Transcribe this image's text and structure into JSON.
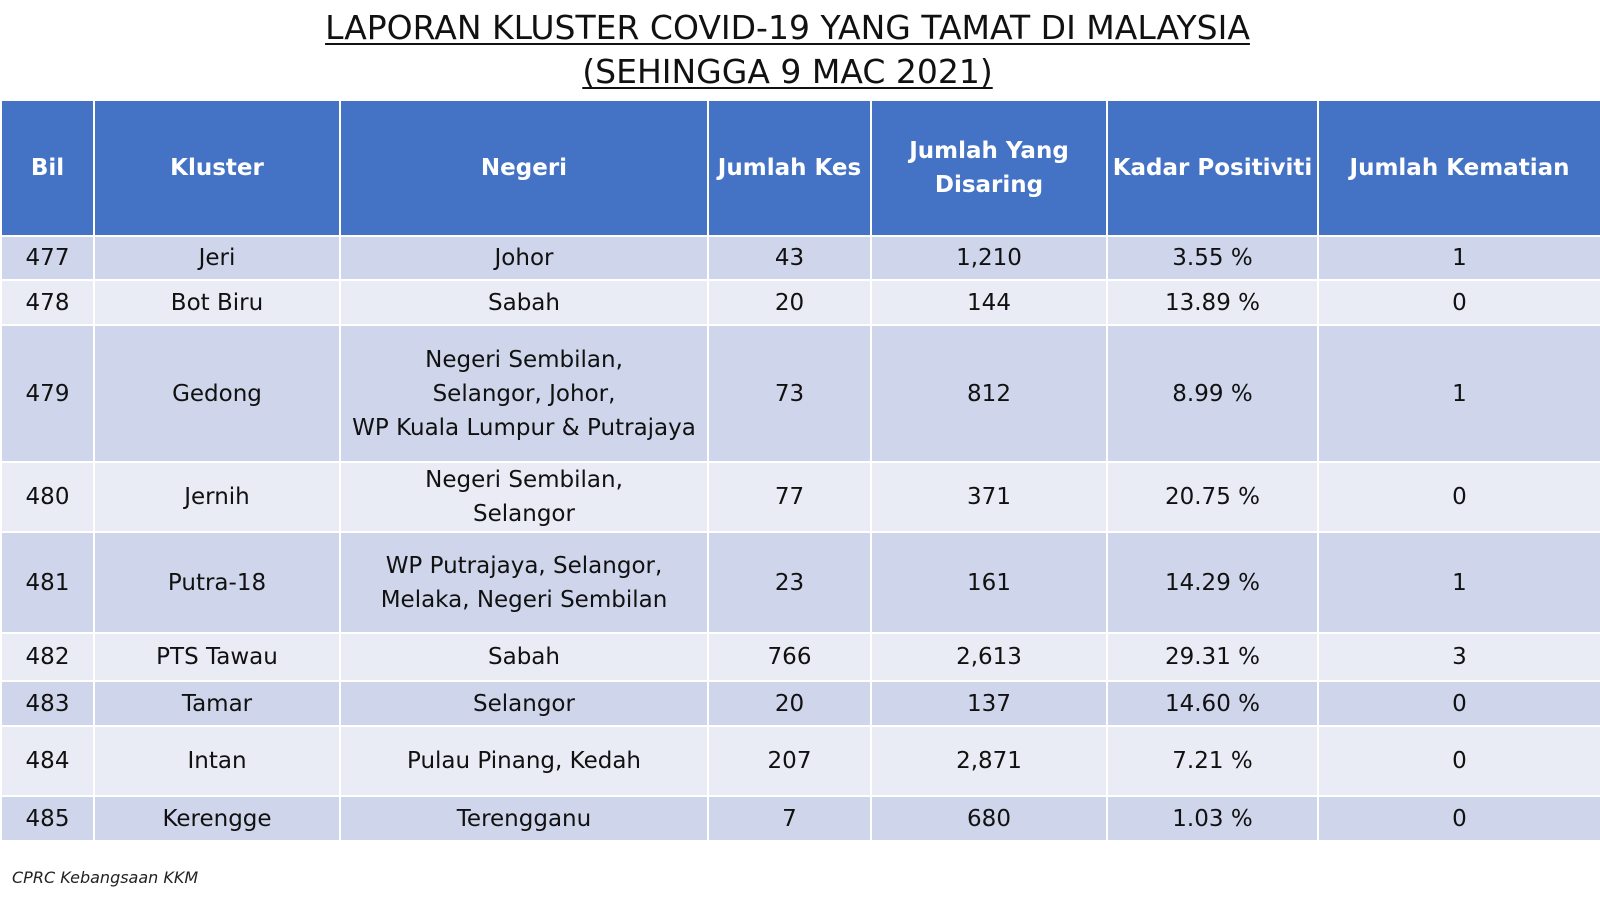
{
  "title": {
    "line1": "LAPORAN KLUSTER COVID-19 YANG TAMAT DI MALAYSIA",
    "line2": "(SEHINGGA 9 MAC 2021)"
  },
  "table": {
    "headers": {
      "bil": "Bil",
      "kluster": "Kluster",
      "negeri": "Negeri",
      "jumlah_kes": "Jumlah Kes",
      "jumlah_disaring_1": "Jumlah Yang",
      "jumlah_disaring_2": "Disaring",
      "kadar_positiviti": "Kadar Positiviti",
      "jumlah_kematian": "Jumlah Kematian"
    },
    "rows": [
      {
        "bil": "477",
        "kluster": "Jeri",
        "negeri": [
          "Johor"
        ],
        "kes": "43",
        "disaring": "1,210",
        "positiviti": "3.55 %",
        "kematian": "1"
      },
      {
        "bil": "478",
        "kluster": "Bot Biru",
        "negeri": [
          "Sabah"
        ],
        "kes": "20",
        "disaring": "144",
        "positiviti": "13.89 %",
        "kematian": "0"
      },
      {
        "bil": "479",
        "kluster": "Gedong",
        "negeri": [
          "Negeri Sembilan,",
          "Selangor, Johor,",
          "WP Kuala Lumpur & Putrajaya"
        ],
        "kes": "73",
        "disaring": "812",
        "positiviti": "8.99 %",
        "kematian": "1"
      },
      {
        "bil": "480",
        "kluster": "Jernih",
        "negeri": [
          "Negeri Sembilan,",
          "Selangor"
        ],
        "kes": "77",
        "disaring": "371",
        "positiviti": "20.75 %",
        "kematian": "0"
      },
      {
        "bil": "481",
        "kluster": "Putra-18",
        "negeri": [
          "WP Putrajaya, Selangor,",
          "Melaka, Negeri Sembilan"
        ],
        "kes": "23",
        "disaring": "161",
        "positiviti": "14.29 %",
        "kematian": "1"
      },
      {
        "bil": "482",
        "kluster": "PTS Tawau",
        "negeri": [
          "Sabah"
        ],
        "kes": "766",
        "disaring": "2,613",
        "positiviti": "29.31 %",
        "kematian": "3"
      },
      {
        "bil": "483",
        "kluster": "Tamar",
        "negeri": [
          "Selangor"
        ],
        "kes": "20",
        "disaring": "137",
        "positiviti": "14.60 %",
        "kematian": "0"
      },
      {
        "bil": "484",
        "kluster": "Intan",
        "negeri": [
          "Pulau Pinang, Kedah"
        ],
        "kes": "207",
        "disaring": "2,871",
        "positiviti": "7.21 %",
        "kematian": "0"
      },
      {
        "bil": "485",
        "kluster": "Kerengge",
        "negeri": [
          "Terengganu"
        ],
        "kes": "7",
        "disaring": "680",
        "positiviti": "1.03 %",
        "kematian": "0"
      }
    ]
  },
  "footer": "CPRC Kebangsaan KKM",
  "colors": {
    "header_bg": "#4472c4",
    "row_dark": "#cfd5ea",
    "row_light": "#e9ebf5"
  }
}
